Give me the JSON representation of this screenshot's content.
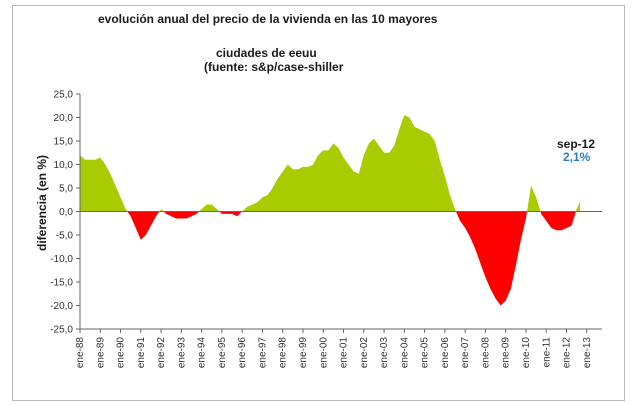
{
  "chart_data": {
    "type": "area",
    "title": "evolución anual del precio de la vivienda en las 10 mayores",
    "subtitle_line1": "ciudades de eeuu",
    "subtitle_line2": "(fuente:  s&p/case-shiller",
    "ylabel": "diferencia (en %)",
    "xlabel": "",
    "ylim": [
      -25,
      25
    ],
    "ytick_values": [
      25,
      20,
      15,
      10,
      5,
      0,
      -5,
      -10,
      -15,
      -20,
      -25
    ],
    "ytick_labels": [
      "25,0",
      "20,0",
      "15,0",
      "10,0",
      "5,0",
      "0,0",
      "-5,0",
      "-10,0",
      "-15,0",
      "-20,0",
      "-25,0"
    ],
    "xtick_labels": [
      "ene-88",
      "ene-89",
      "ene-90",
      "ene-91",
      "ene-92",
      "ene-93",
      "ene-94",
      "ene-95",
      "ene-96",
      "ene-97",
      "ene-98",
      "ene-99",
      "ene-00",
      "ene-01",
      "ene-02",
      "ene-03",
      "ene-04",
      "ene-05",
      "ene-06",
      "ene-07",
      "ene-08",
      "ene-09",
      "ene-10",
      "ene-11",
      "ene-12",
      "ene-13"
    ],
    "x_start": "ene-88",
    "x_end": "ene-13",
    "grid": false,
    "positive_color": "#a8cc00",
    "negative_color": "#ff0000",
    "series": [
      {
        "points": [
          [
            "1988-01",
            12.0
          ],
          [
            "1988-04",
            11.0
          ],
          [
            "1988-07",
            11.0
          ],
          [
            "1988-10",
            11.0
          ],
          [
            "1989-01",
            11.5
          ],
          [
            "1989-04",
            10.0
          ],
          [
            "1989-07",
            8.0
          ],
          [
            "1989-10",
            5.5
          ],
          [
            "1990-01",
            3.0
          ],
          [
            "1990-04",
            0.5
          ],
          [
            "1990-07",
            -1.0
          ],
          [
            "1990-10",
            -3.5
          ],
          [
            "1991-01",
            -6.0
          ],
          [
            "1991-04",
            -5.0
          ],
          [
            "1991-07",
            -3.0
          ],
          [
            "1991-10",
            -1.0
          ],
          [
            "1992-01",
            0.5
          ],
          [
            "1992-04",
            -0.5
          ],
          [
            "1992-07",
            -1.0
          ],
          [
            "1992-10",
            -1.5
          ],
          [
            "1993-01",
            -1.5
          ],
          [
            "1993-04",
            -1.5
          ],
          [
            "1993-07",
            -1.0
          ],
          [
            "1993-10",
            -0.5
          ],
          [
            "1994-01",
            0.5
          ],
          [
            "1994-04",
            1.5
          ],
          [
            "1994-07",
            1.5
          ],
          [
            "1994-10",
            0.5
          ],
          [
            "1995-01",
            -0.5
          ],
          [
            "1995-04",
            -0.5
          ],
          [
            "1995-07",
            -0.5
          ],
          [
            "1995-10",
            -1.0
          ],
          [
            "1996-01",
            0.0
          ],
          [
            "1996-04",
            1.0
          ],
          [
            "1996-07",
            1.5
          ],
          [
            "1996-10",
            2.0
          ],
          [
            "1997-01",
            3.0
          ],
          [
            "1997-04",
            3.5
          ],
          [
            "1997-07",
            5.0
          ],
          [
            "1997-10",
            7.0
          ],
          [
            "1998-01",
            8.5
          ],
          [
            "1998-04",
            10.0
          ],
          [
            "1998-07",
            9.0
          ],
          [
            "1998-10",
            9.0
          ],
          [
            "1999-01",
            9.5
          ],
          [
            "1999-04",
            9.5
          ],
          [
            "1999-07",
            10.0
          ],
          [
            "1999-10",
            12.0
          ],
          [
            "2000-01",
            13.0
          ],
          [
            "2000-04",
            13.0
          ],
          [
            "2000-07",
            14.5
          ],
          [
            "2000-10",
            13.5
          ],
          [
            "2001-01",
            11.5
          ],
          [
            "2001-04",
            10.0
          ],
          [
            "2001-07",
            8.5
          ],
          [
            "2001-10",
            8.0
          ],
          [
            "2002-01",
            12.0
          ],
          [
            "2002-04",
            14.5
          ],
          [
            "2002-07",
            15.5
          ],
          [
            "2002-10",
            14.0
          ],
          [
            "2003-01",
            12.5
          ],
          [
            "2003-04",
            12.5
          ],
          [
            "2003-07",
            14.0
          ],
          [
            "2003-10",
            17.5
          ],
          [
            "2004-01",
            20.5
          ],
          [
            "2004-04",
            20.0
          ],
          [
            "2004-07",
            18.0
          ],
          [
            "2004-10",
            17.5
          ],
          [
            "2005-01",
            17.0
          ],
          [
            "2005-04",
            16.5
          ],
          [
            "2005-07",
            15.0
          ],
          [
            "2005-10",
            11.0
          ],
          [
            "2006-01",
            7.5
          ],
          [
            "2006-04",
            3.5
          ],
          [
            "2006-07",
            0.5
          ],
          [
            "2006-10",
            -2.0
          ],
          [
            "2007-01",
            -3.5
          ],
          [
            "2007-04",
            -5.5
          ],
          [
            "2007-07",
            -8.0
          ],
          [
            "2007-10",
            -11.0
          ],
          [
            "2008-01",
            -14.0
          ],
          [
            "2008-04",
            -16.5
          ],
          [
            "2008-07",
            -18.5
          ],
          [
            "2008-10",
            -20.0
          ],
          [
            "2009-01",
            -19.0
          ],
          [
            "2009-04",
            -16.5
          ],
          [
            "2009-07",
            -11.5
          ],
          [
            "2009-10",
            -6.0
          ],
          [
            "2010-01",
            -1.5
          ],
          [
            "2010-04",
            5.5
          ],
          [
            "2010-07",
            3.0
          ],
          [
            "2010-10",
            -0.5
          ],
          [
            "2011-01",
            -2.0
          ],
          [
            "2011-04",
            -3.5
          ],
          [
            "2011-07",
            -4.0
          ],
          [
            "2011-10",
            -4.0
          ],
          [
            "2012-01",
            -3.5
          ],
          [
            "2012-04",
            -3.0
          ],
          [
            "2012-07",
            0.5
          ],
          [
            "2012-09",
            2.1
          ]
        ]
      }
    ],
    "annotation": {
      "label": "sep-12",
      "value": "2,1%",
      "value_color": "#2e7dc1"
    }
  }
}
